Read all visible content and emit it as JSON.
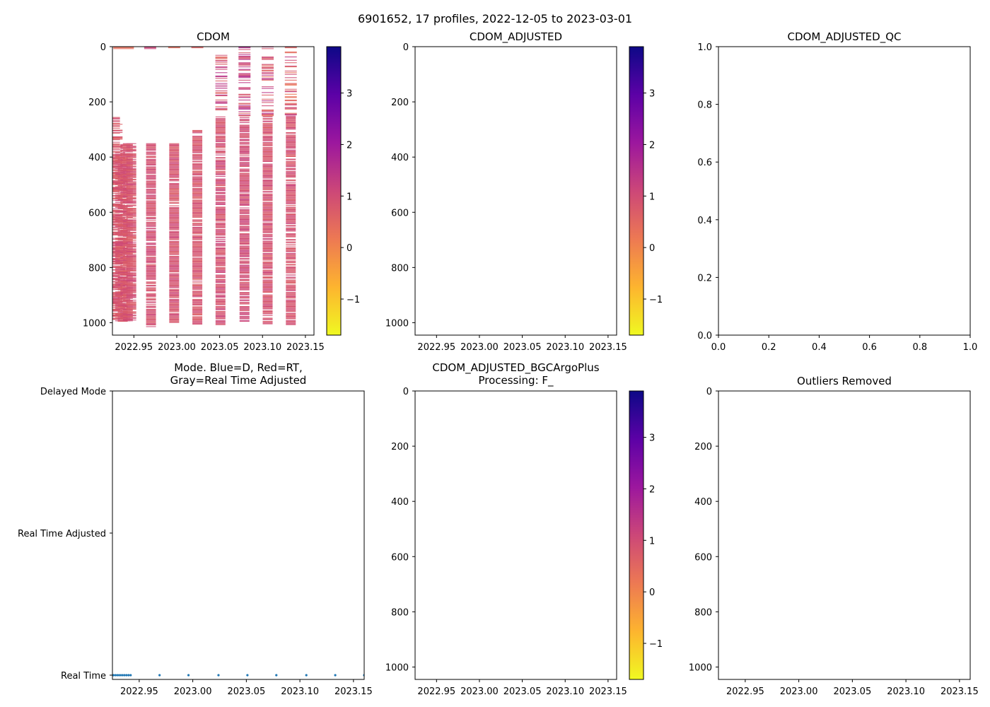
{
  "figure": {
    "suptitle": "6901652, 17 profiles, 2022-12-05 to 2023-03-01"
  },
  "colormap": {
    "name": "plasma_r",
    "stops": [
      "#f0f921",
      "#fdb42f",
      "#ed7953",
      "#cc4778",
      "#9c179e",
      "#5c01a6",
      "#0d0887"
    ]
  },
  "chart_data": [
    {
      "id": "cdom",
      "type": "heatmap",
      "title": "CDOM",
      "xlim": [
        2022.925,
        2023.16
      ],
      "ylim": [
        1045,
        0
      ],
      "xticks": [
        2022.95,
        2023.0,
        2023.05,
        2023.1,
        2023.15
      ],
      "yticks": [
        0,
        200,
        400,
        600,
        800,
        1000
      ],
      "colorbar": {
        "vmin": -1.7,
        "vmax": 3.9,
        "ticks": [
          -1,
          0,
          1,
          2,
          3
        ],
        "tick_labels": [
          "−1",
          "0",
          "1",
          "2",
          "3"
        ]
      },
      "typical_value": 0.85,
      "profiles": [
        {
          "x": 2022.928,
          "top": 255,
          "bottom": 990,
          "v": 0.8,
          "sparse": 0.55
        },
        {
          "x": 2022.931,
          "top": 280,
          "bottom": 990,
          "v": 0.8,
          "sparse": 0.45
        },
        {
          "x": 2022.934,
          "top": 380,
          "bottom": 995,
          "v": 0.85,
          "sparse": 0.4
        },
        {
          "x": 2022.937,
          "top": 400,
          "bottom": 995,
          "v": 0.85,
          "sparse": 0.35
        },
        {
          "x": 2022.94,
          "top": 350,
          "bottom": 995,
          "v": 0.85,
          "sparse": 0.3
        },
        {
          "x": 2022.943,
          "top": 350,
          "bottom": 995,
          "v": 0.85,
          "sparse": 0.25
        },
        {
          "x": 2022.947,
          "top": 350,
          "bottom": 990,
          "v": 0.85,
          "sparse": 0.15
        },
        {
          "x": 2022.97,
          "top": 350,
          "bottom": 1015,
          "v": 0.9,
          "sparse": 0.12
        },
        {
          "x": 2022.997,
          "top": 350,
          "bottom": 1000,
          "v": 0.9,
          "sparse": 0.12
        },
        {
          "x": 2023.024,
          "top": 302,
          "bottom": 1005,
          "v": 0.85,
          "sparse": 0.12
        },
        {
          "x": 2023.051,
          "top": 250,
          "bottom": 1010,
          "v": 0.95,
          "sparse": 0.15
        },
        {
          "x": 2023.079,
          "top": 250,
          "bottom": 995,
          "v": 1.0,
          "sparse": 0.15
        },
        {
          "x": 2023.106,
          "top": 250,
          "bottom": 1005,
          "v": 0.9,
          "sparse": 0.15
        },
        {
          "x": 2023.133,
          "top": 250,
          "bottom": 1010,
          "v": 0.9,
          "sparse": 0.15
        }
      ],
      "surface_profiles": [
        {
          "x1": 2022.926,
          "x2": 2022.95,
          "top": 0,
          "bottom": 8,
          "v": 0.4
        },
        {
          "x1": 2022.962,
          "x2": 2022.976,
          "top": 0,
          "bottom": 8,
          "v": 1.2
        },
        {
          "x1": 2022.99,
          "x2": 2023.004,
          "top": 0,
          "bottom": 5,
          "v": 0.3
        },
        {
          "x1": 2023.017,
          "x2": 2023.031,
          "top": 0,
          "bottom": 5,
          "v": 0.6
        },
        {
          "x1": 2023.045,
          "x2": 2023.059,
          "top": 0,
          "bottom": 230,
          "v": 1.0,
          "sparse": 0.55
        },
        {
          "x1": 2023.072,
          "x2": 2023.086,
          "top": 0,
          "bottom": 250,
          "v": 1.1,
          "sparse": 0.5
        },
        {
          "x1": 2023.099,
          "x2": 2023.113,
          "top": 0,
          "bottom": 250,
          "v": 0.9,
          "sparse": 0.55
        },
        {
          "x1": 2023.126,
          "x2": 2023.14,
          "top": 0,
          "bottom": 250,
          "v": 0.8,
          "sparse": 0.6
        }
      ]
    },
    {
      "id": "cdom_adjusted",
      "type": "heatmap",
      "title": "CDOM_ADJUSTED",
      "xlim": [
        2022.925,
        2023.16
      ],
      "ylim": [
        1045,
        0
      ],
      "xticks": [
        2022.95,
        2023.0,
        2023.05,
        2023.1,
        2023.15
      ],
      "yticks": [
        0,
        200,
        400,
        600,
        800,
        1000
      ],
      "colorbar": {
        "vmin": -1.7,
        "vmax": 3.9,
        "ticks": [
          -1,
          0,
          1,
          2,
          3
        ],
        "tick_labels": [
          "−1",
          "0",
          "1",
          "2",
          "3"
        ]
      },
      "profiles": []
    },
    {
      "id": "cdom_adjusted_qc",
      "type": "scatter",
      "title": "CDOM_ADJUSTED_QC",
      "xlim": [
        0,
        1
      ],
      "ylim": [
        0,
        1
      ],
      "xticks": [
        0.0,
        0.2,
        0.4,
        0.6,
        0.8,
        1.0
      ],
      "yticks": [
        0.0,
        0.2,
        0.4,
        0.6,
        0.8,
        1.0
      ],
      "points": []
    },
    {
      "id": "mode",
      "type": "scatter",
      "title_lines": [
        "Mode. Blue=D, Red=RT,",
        "Gray=Real Time Adjusted"
      ],
      "xlim": [
        2022.925,
        2023.16
      ],
      "ylim": [
        -0.03,
        2
      ],
      "xticks": [
        2022.95,
        2023.0,
        2023.05,
        2023.1,
        2023.15
      ],
      "ytick_values": [
        2,
        1,
        0
      ],
      "ytick_labels": [
        "Delayed Mode",
        "Real Time Adjusted",
        "Real Time"
      ],
      "point_color": "#1f77b4",
      "x": [
        2022.926,
        2022.928,
        2022.93,
        2022.932,
        2022.934,
        2022.936,
        2022.938,
        2022.94,
        2022.942,
        2022.969,
        2022.996,
        2023.024,
        2023.051,
        2023.078,
        2023.106,
        2023.133,
        2023.16
      ],
      "y": [
        0,
        0,
        0,
        0,
        0,
        0,
        0,
        0,
        0,
        0,
        0,
        0,
        0,
        0,
        0,
        0,
        0
      ]
    },
    {
      "id": "cdom_adjusted_bgc",
      "type": "heatmap",
      "title_lines": [
        "CDOM_ADJUSTED_BGCArgoPlus",
        "Processing: F_"
      ],
      "xlim": [
        2022.925,
        2023.16
      ],
      "ylim": [
        1045,
        0
      ],
      "xticks": [
        2022.95,
        2023.0,
        2023.05,
        2023.1,
        2023.15
      ],
      "yticks": [
        0,
        200,
        400,
        600,
        800,
        1000
      ],
      "colorbar": {
        "vmin": -1.7,
        "vmax": 3.9,
        "ticks": [
          -1,
          0,
          1,
          2,
          3
        ],
        "tick_labels": [
          "−1",
          "0",
          "1",
          "2",
          "3"
        ]
      },
      "profiles": []
    },
    {
      "id": "outliers",
      "type": "scatter",
      "title": "Outliers Removed",
      "xlim": [
        2022.925,
        2023.16
      ],
      "ylim": [
        1045,
        0
      ],
      "xticks": [
        2022.95,
        2023.0,
        2023.05,
        2023.1,
        2023.15
      ],
      "yticks": [
        0,
        200,
        400,
        600,
        800,
        1000
      ],
      "points": []
    }
  ]
}
